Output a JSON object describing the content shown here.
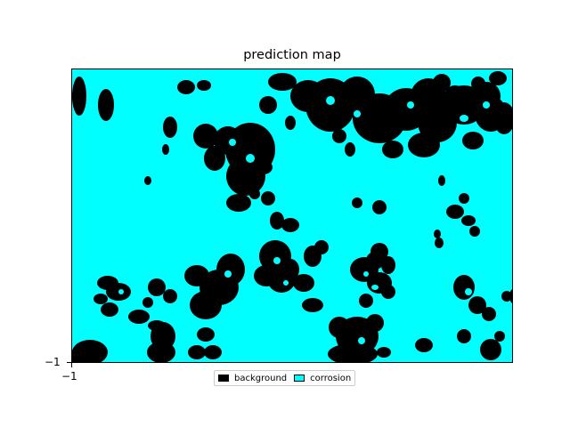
{
  "chart_data": {
    "type": "heatmap",
    "title": "prediction map",
    "xlabel": "",
    "ylabel": "",
    "x_tick_labels": [
      "−1"
    ],
    "y_tick_labels": [
      "−1"
    ],
    "classes": [
      {
        "name": "background",
        "color": "#000000"
      },
      {
        "name": "corrosion",
        "color": "#00ffff"
      }
    ],
    "legend_placement": "below plot, center",
    "grid": false
  }
}
